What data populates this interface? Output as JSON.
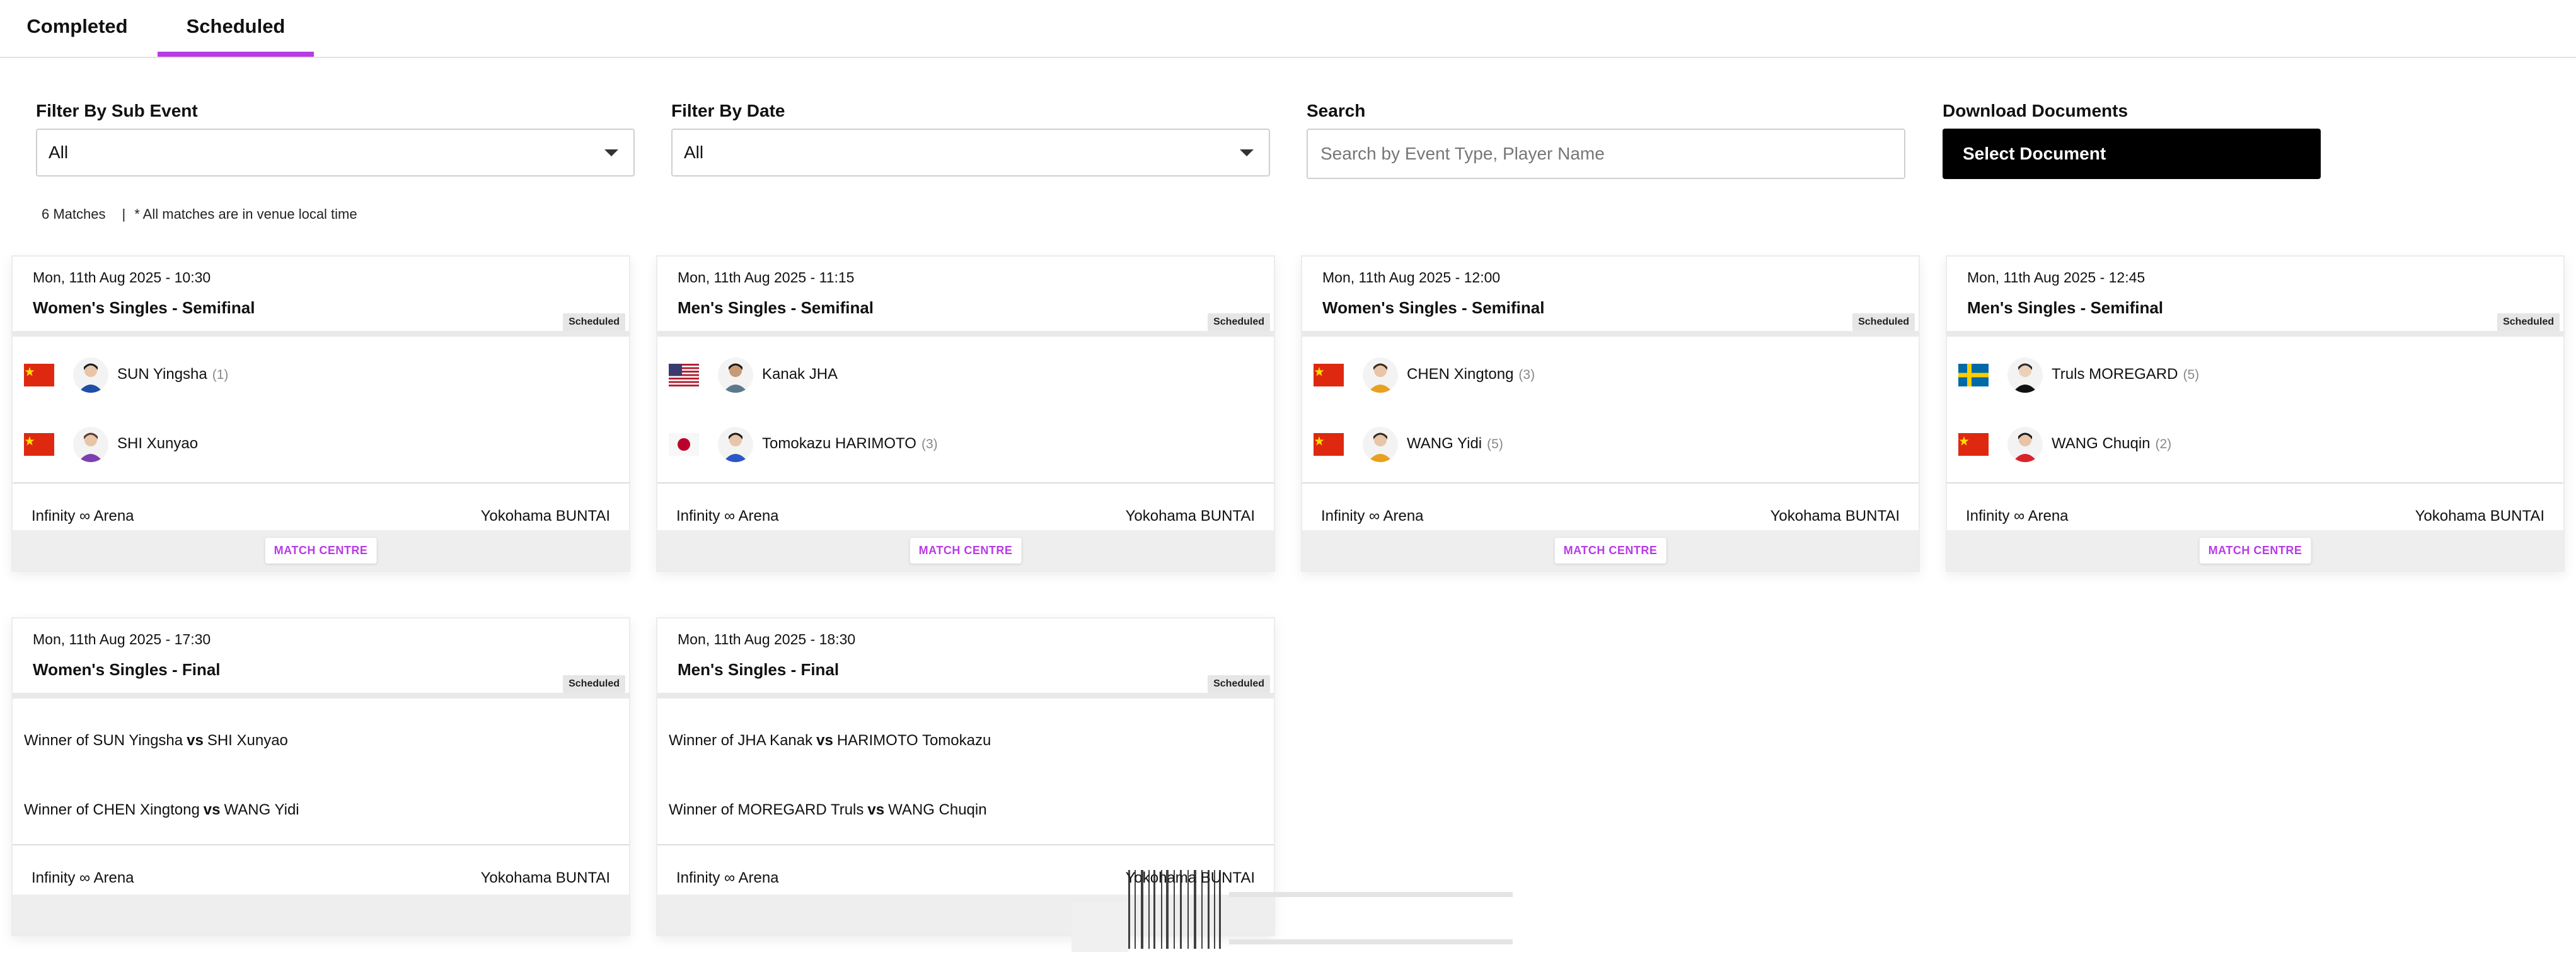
{
  "tabs": [
    {
      "label": "Completed",
      "active": false
    },
    {
      "label": "Scheduled",
      "active": true
    }
  ],
  "filters": {
    "sub_event": {
      "label": "Filter By Sub Event",
      "value": "All"
    },
    "date": {
      "label": "Filter By Date",
      "value": "All"
    },
    "search": {
      "label": "Search",
      "placeholder": "Search by Event Type, Player Name"
    },
    "documents": {
      "label": "Download Documents",
      "button": "Select Document"
    }
  },
  "meta": {
    "count": "6 Matches",
    "separator": "|",
    "note": "* All matches are in venue local time"
  },
  "colors": {
    "accent": "#b83be6"
  },
  "matches": [
    {
      "datetime": "Mon, 11th Aug 2025 - 10:30",
      "title": "Women's Singles - Semifinal",
      "status": "Scheduled",
      "players": [
        {
          "name": "SUN Yingsha",
          "seed": "(1)",
          "flag": "china-flag"
        },
        {
          "name": "SHI Xunyao",
          "seed": "",
          "flag": "china-flag"
        }
      ],
      "venue": "Infinity ∞ Arena",
      "city": "Yokohama BUNTAI",
      "button": "MATCH CENTRE"
    },
    {
      "datetime": "Mon, 11th Aug 2025 - 11:15",
      "title": "Men's Singles - Semifinal",
      "status": "Scheduled",
      "players": [
        {
          "name": "Kanak JHA",
          "seed": "",
          "flag": "usa-flag"
        },
        {
          "name": "Tomokazu HARIMOTO",
          "seed": "(3)",
          "flag": "japan-flag"
        }
      ],
      "venue": "Infinity ∞ Arena",
      "city": "Yokohama BUNTAI",
      "button": "MATCH CENTRE"
    },
    {
      "datetime": "Mon, 11th Aug 2025 - 12:00",
      "title": "Women's Singles - Semifinal",
      "status": "Scheduled",
      "players": [
        {
          "name": "CHEN Xingtong",
          "seed": "(3)",
          "flag": "china-flag"
        },
        {
          "name": "WANG Yidi",
          "seed": "(5)",
          "flag": "china-flag"
        }
      ],
      "venue": "Infinity ∞ Arena",
      "city": "Yokohama BUNTAI",
      "button": "MATCH CENTRE"
    },
    {
      "datetime": "Mon, 11th Aug 2025 - 12:45",
      "title": "Men's Singles - Semifinal",
      "status": "Scheduled",
      "players": [
        {
          "name": "Truls MOREGARD",
          "seed": "(5)",
          "flag": "sweden-flag"
        },
        {
          "name": "WANG Chuqin",
          "seed": "(2)",
          "flag": "china-flag"
        }
      ],
      "venue": "Infinity ∞ Arena",
      "city": "Yokohama BUNTAI",
      "button": "MATCH CENTRE"
    },
    {
      "datetime": "Mon, 11th Aug 2025 - 17:30",
      "title": "Women's Singles - Final",
      "status": "Scheduled",
      "winners": [
        {
          "prefix": "Winner of SUN Yingsha",
          "vs": "vs",
          "suffix": "SHI Xunyao"
        },
        {
          "prefix": "Winner of CHEN Xingtong",
          "vs": "vs",
          "suffix": "WANG Yidi"
        }
      ],
      "venue": "Infinity ∞ Arena",
      "city": "Yokohama BUNTAI"
    },
    {
      "datetime": "Mon, 11th Aug 2025 - 18:30",
      "title": "Men's Singles - Final",
      "status": "Scheduled",
      "winners": [
        {
          "prefix": "Winner of JHA Kanak",
          "vs": "vs",
          "suffix": "HARIMOTO Tomokazu"
        },
        {
          "prefix": "Winner of MOREGARD Truls",
          "vs": "vs",
          "suffix": "WANG Chuqin"
        }
      ],
      "venue": "Infinity ∞ Arena",
      "city": "Yokohama BUNTAI"
    }
  ]
}
